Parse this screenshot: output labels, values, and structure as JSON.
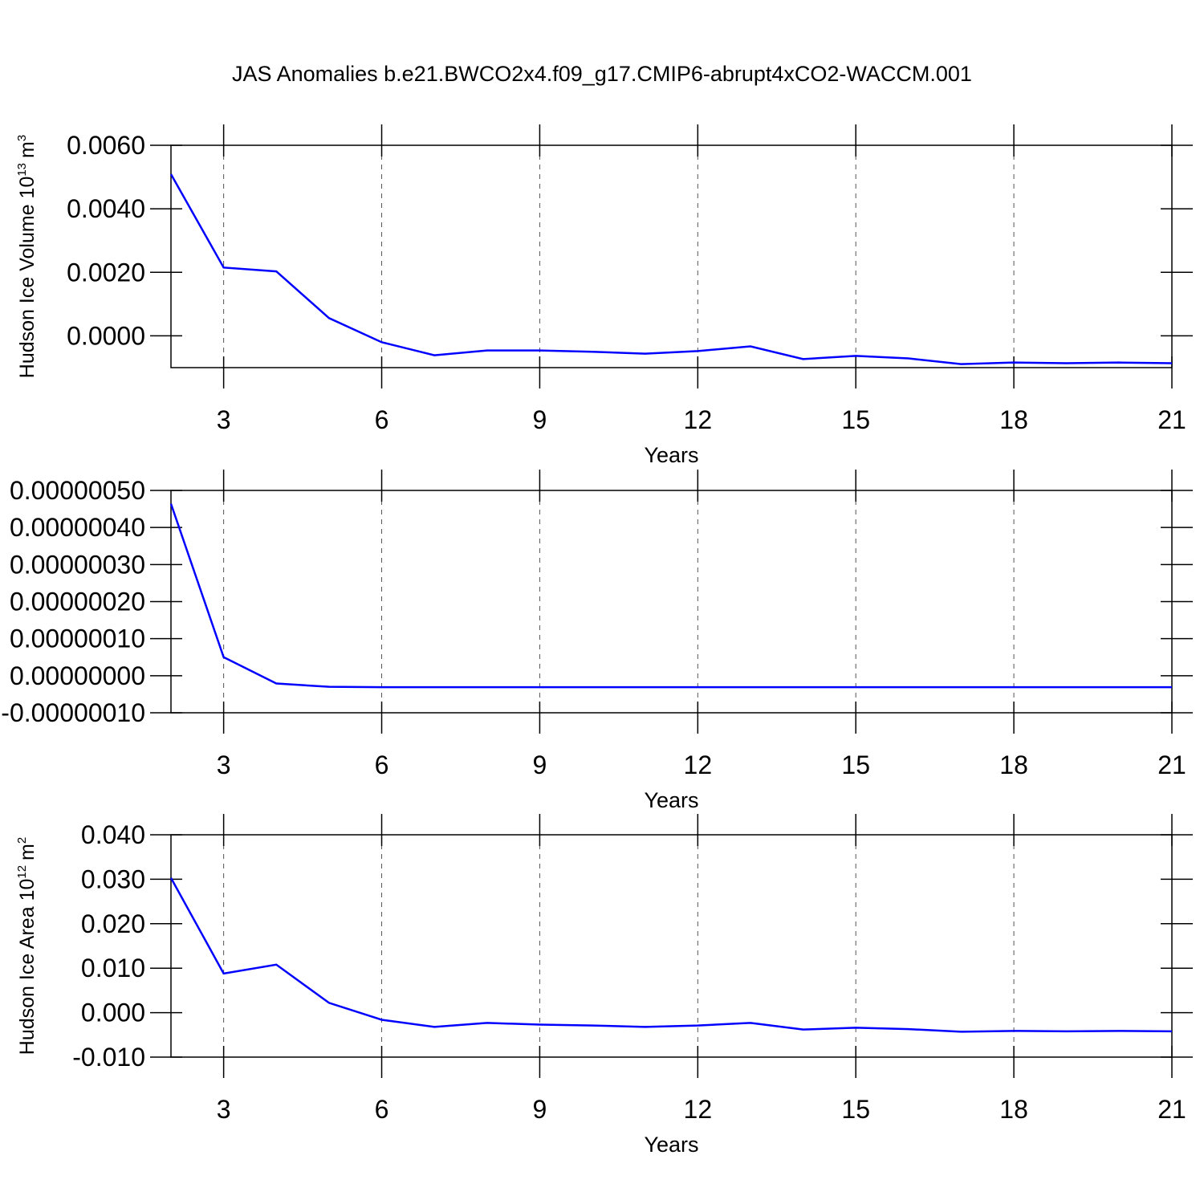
{
  "chart_data": [
    {
      "type": "line",
      "title": "JAS Anomalies b.e21.BWCO2x4.f09_g17.CMIP6-abrupt4xCO2-WACCM.001",
      "ylabel": {
        "text": "Hudson Ice Volume 10",
        "exponent": "13",
        "unit": "m",
        "unit_exponent": "3"
      },
      "xlabel": "Years",
      "x": [
        2,
        3,
        4,
        5,
        6,
        7,
        8,
        9,
        10,
        11,
        12,
        13,
        14,
        15,
        16,
        17,
        18,
        19,
        20,
        21
      ],
      "series": [
        {
          "color": "#0000ff",
          "values": [
            0.00509,
            0.00215,
            0.00203,
            0.00056,
            -0.0002,
            -0.00061,
            -0.00046,
            -0.00046,
            -0.0005,
            -0.00056,
            -0.00048,
            -0.00033,
            -0.00073,
            -0.00063,
            -0.00071,
            -0.00089,
            -0.00084,
            -0.00086,
            -0.00084,
            -0.00086
          ]
        }
      ],
      "xlim": [
        2,
        21
      ],
      "xticks": [
        3,
        6,
        9,
        12,
        15,
        18,
        21
      ],
      "ylim": [
        -0.001,
        0.006
      ],
      "yticks": [
        {
          "value": 0.006,
          "label": "0.0060"
        },
        {
          "value": 0.004,
          "label": "0.0040"
        },
        {
          "value": 0.002,
          "label": "0.0020"
        },
        {
          "value": 0,
          "label": "0.0000"
        }
      ],
      "grid": "x-dashed"
    },
    {
      "type": "line",
      "xlabel": "Years",
      "x": [
        2,
        3,
        4,
        5,
        6,
        7,
        8,
        9,
        10,
        11,
        12,
        13,
        14,
        15,
        16,
        17,
        18,
        19,
        20,
        21
      ],
      "series": [
        {
          "color": "#0000ff",
          "values": [
            4.64e-07,
            5e-08,
            -2.1e-08,
            -3e-08,
            -3.1e-08,
            -3.1e-08,
            -3.1e-08,
            -3.1e-08,
            -3.1e-08,
            -3.1e-08,
            -3.1e-08,
            -3.1e-08,
            -3.1e-08,
            -3.1e-08,
            -3.1e-08,
            -3.1e-08,
            -3.1e-08,
            -3.1e-08,
            -3.1e-08,
            -3.1e-08
          ]
        }
      ],
      "xlim": [
        2,
        21
      ],
      "xticks": [
        3,
        6,
        9,
        12,
        15,
        18,
        21
      ],
      "ylim": [
        -1e-07,
        5e-07
      ],
      "yticks": [
        {
          "value": 5e-07,
          "label": "0.00000050"
        },
        {
          "value": 4e-07,
          "label": "0.00000040"
        },
        {
          "value": 3e-07,
          "label": "0.00000030"
        },
        {
          "value": 2e-07,
          "label": "0.00000020"
        },
        {
          "value": 1e-07,
          "label": "0.00000010"
        },
        {
          "value": 0,
          "label": "0.00000000"
        },
        {
          "value": -1e-07,
          "label": "-0.00000010"
        }
      ],
      "grid": "x-dashed"
    },
    {
      "type": "line",
      "ylabel": {
        "text": "Hudson Ice Area 10",
        "exponent": "12",
        "unit": "m",
        "unit_exponent": "2"
      },
      "xlabel": "Years",
      "x": [
        2,
        3,
        4,
        5,
        6,
        7,
        8,
        9,
        10,
        11,
        12,
        13,
        14,
        15,
        16,
        17,
        18,
        19,
        20,
        21
      ],
      "series": [
        {
          "color": "#0000ff",
          "values": [
            0.0303,
            0.0088,
            0.0108,
            0.0022,
            -0.0016,
            -0.0032,
            -0.0023,
            -0.0027,
            -0.0029,
            -0.0032,
            -0.0029,
            -0.0023,
            -0.0038,
            -0.0034,
            -0.0037,
            -0.0043,
            -0.0041,
            -0.0042,
            -0.0041,
            -0.0042
          ]
        }
      ],
      "xlim": [
        2,
        21
      ],
      "xticks": [
        3,
        6,
        9,
        12,
        15,
        18,
        21
      ],
      "ylim": [
        -0.01,
        0.04
      ],
      "yticks": [
        {
          "value": 0.04,
          "label": "0.040"
        },
        {
          "value": 0.03,
          "label": "0.030"
        },
        {
          "value": 0.02,
          "label": "0.020"
        },
        {
          "value": 0.01,
          "label": "0.010"
        },
        {
          "value": 0,
          "label": "0.000"
        },
        {
          "value": -0.01,
          "label": "-0.010"
        }
      ],
      "grid": "x-dashed"
    }
  ]
}
